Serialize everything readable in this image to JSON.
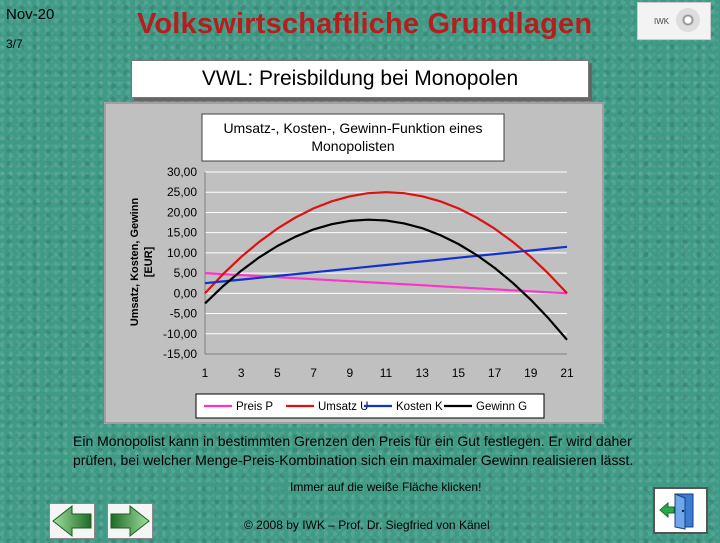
{
  "header": {
    "date": "Nov-20",
    "slide_number": "3/7",
    "title": "Volkswirtschaftliche Grundlagen",
    "logo_text": "IWK"
  },
  "subtitle": "VWL: Preisbildung bei Monopolen",
  "chart_data": {
    "type": "line",
    "title": "Umsatz-, Kosten-, Gewinn-Funktion eines Monopolisten",
    "title_lines": [
      "Umsatz-, Kosten-, Gewinn-Funktion eines",
      "Monopolisten"
    ],
    "ylabel_lines": [
      "Umsatz, Kosten, Gewinn",
      "[EUR]"
    ],
    "xlabel": "",
    "x": [
      1,
      2,
      3,
      4,
      5,
      6,
      7,
      8,
      9,
      10,
      11,
      12,
      13,
      14,
      15,
      16,
      17,
      18,
      19,
      20,
      21
    ],
    "x_ticks": [
      "1",
      "3",
      "5",
      "7",
      "9",
      "11",
      "13",
      "15",
      "17",
      "19",
      "21"
    ],
    "y_ticks": [
      "30,00",
      "25,00",
      "20,00",
      "15,00",
      "10,00",
      "5,00",
      "0,00",
      "-5,00",
      "-10,00",
      "-15,00"
    ],
    "ylim": [
      -15,
      30
    ],
    "xlim": [
      1,
      21
    ],
    "grid": true,
    "legend_position": "bottom",
    "series": [
      {
        "name": "Preis P",
        "color": "#ff33cc",
        "values": [
          5.0,
          4.75,
          4.5,
          4.25,
          4.0,
          3.75,
          3.5,
          3.25,
          3.0,
          2.75,
          2.5,
          2.25,
          2.0,
          1.75,
          1.5,
          1.25,
          1.0,
          0.75,
          0.5,
          0.25,
          0.0
        ]
      },
      {
        "name": "Umsatz U",
        "color": "#dd1111",
        "values": [
          0.0,
          4.75,
          9.0,
          12.75,
          16.0,
          18.75,
          21.0,
          22.75,
          24.0,
          24.75,
          25.0,
          24.75,
          24.0,
          22.75,
          21.0,
          18.75,
          16.0,
          12.75,
          9.0,
          4.75,
          0.0
        ]
      },
      {
        "name": "Kosten K",
        "color": "#1133cc",
        "values": [
          2.5,
          2.95,
          3.4,
          3.85,
          4.3,
          4.75,
          5.2,
          5.65,
          6.1,
          6.55,
          7.0,
          7.45,
          7.9,
          8.35,
          8.8,
          9.25,
          9.7,
          10.15,
          10.6,
          11.05,
          11.5
        ]
      },
      {
        "name": "Gewinn G",
        "color": "#000000",
        "values": [
          -2.5,
          1.8,
          5.6,
          8.9,
          11.7,
          14.0,
          15.8,
          17.1,
          17.9,
          18.2,
          18.0,
          17.3,
          16.1,
          14.4,
          12.2,
          9.5,
          6.3,
          2.6,
          -1.6,
          -6.3,
          -11.5
        ]
      }
    ]
  },
  "body_text": "Ein Monopolist kann in bestimmten Grenzen den Preis für ein Gut festlegen. Er wird daher prüfen, bei welcher Menge-Preis-Kombination sich ein maximaler Gewinn realisieren lässt.",
  "hint": "Immer auf die weiße Fläche klicken!",
  "footer": "© 2008 by IWK – Prof. Dr. Siegfried von Känel",
  "colors": {
    "title": "#b61e1e",
    "background": "#3f9a86",
    "plot_bg": "#c0c0c0",
    "nav_green": "#2e7d32"
  },
  "icons": {
    "prev": "arrow-left-icon",
    "next": "arrow-right-icon",
    "exit": "exit-door-icon"
  }
}
